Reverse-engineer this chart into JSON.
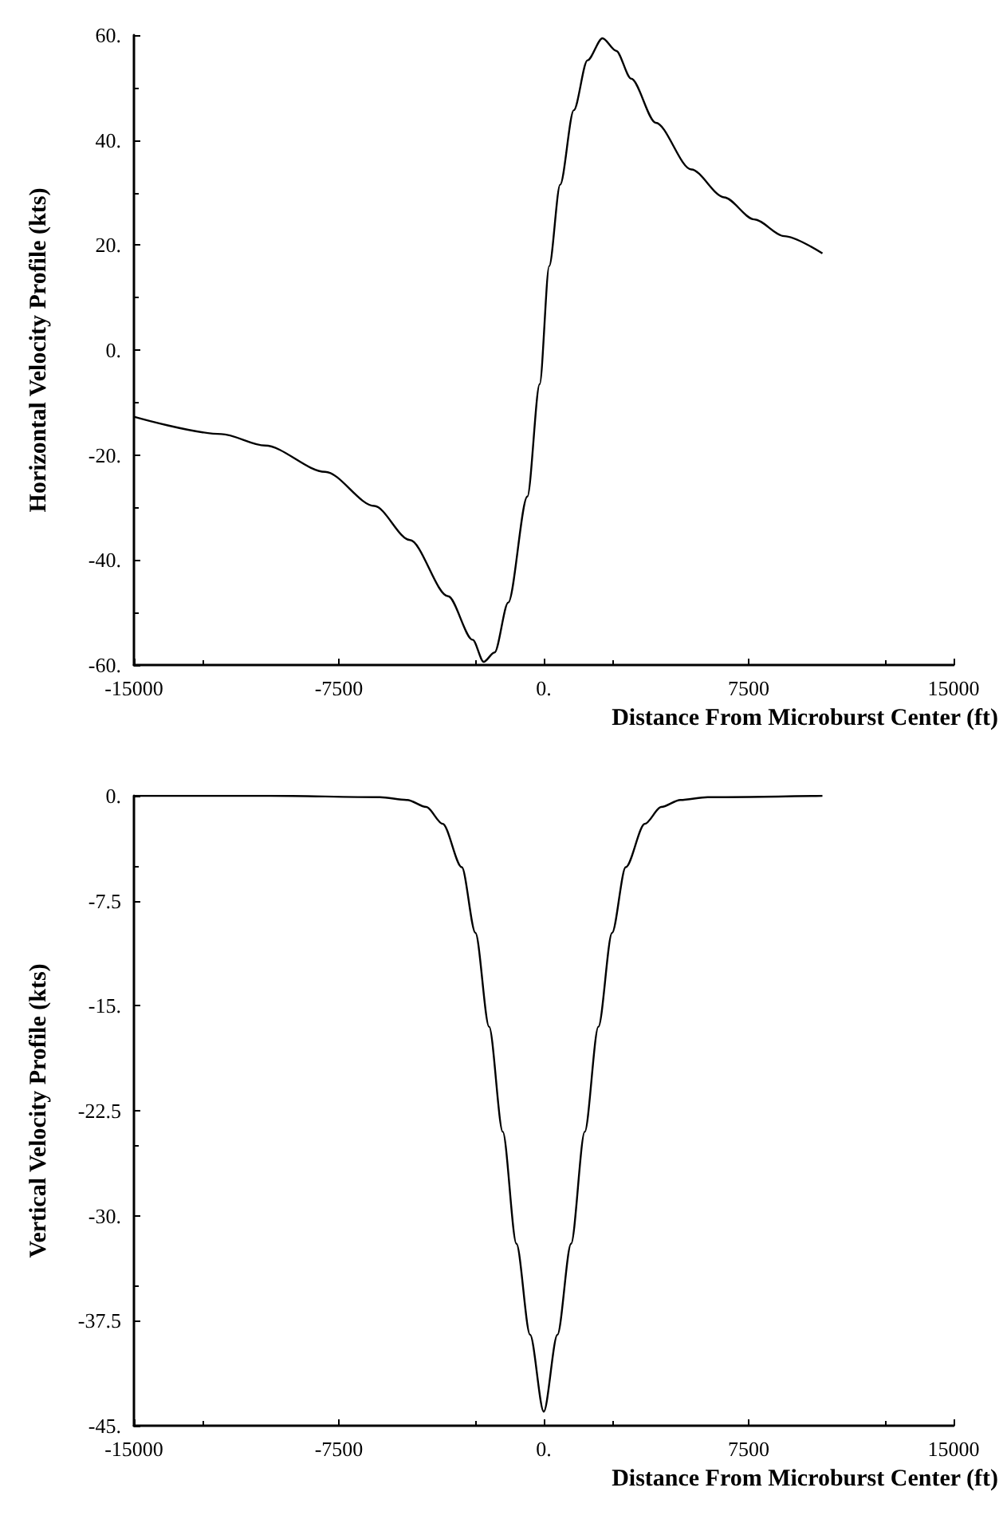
{
  "chart_data": [
    {
      "type": "line",
      "xlabel": "Distance From Microburst Center (ft)",
      "ylabel": "Horizontal Velocity Profile (kts)",
      "grid": false,
      "marker": "none",
      "line_style": "solid",
      "xlim": [
        -15000,
        15000
      ],
      "ylim": [
        -60,
        60
      ],
      "xticks": [
        -15000,
        -7500,
        {
          "value": 0,
          "label": "0."
        },
        7500,
        15000
      ],
      "yticks": [
        {
          "value": -60,
          "label": "-60."
        },
        {
          "value": -40,
          "label": "-40."
        },
        {
          "value": -20,
          "label": "-20."
        },
        {
          "value": 0,
          "label": "0."
        },
        {
          "value": 20,
          "label": "20."
        },
        {
          "value": 40,
          "label": "40."
        },
        {
          "value": 60,
          "label": "60."
        }
      ],
      "series": [
        {
          "color": "#000000",
          "x": [
            -15000,
            -11800,
            -10200,
            -8000,
            -6200,
            -4900,
            -3500,
            -2600,
            -2200,
            -1800,
            -1300,
            -600,
            -150,
            200,
            600,
            1100,
            1600,
            2150,
            2650,
            3200,
            4100,
            5400,
            6600,
            7700,
            8800,
            10200
          ],
          "values": [
            -12.7,
            -16,
            -18.2,
            -23.2,
            -29.7,
            -36.2,
            -46.9,
            -55.2,
            -59.4,
            -57.6,
            -48.1,
            -27.9,
            -6.5,
            16,
            31.5,
            45.7,
            55.2,
            59.4,
            57,
            51.7,
            43.3,
            34.4,
            29.1,
            24.9,
            21.7,
            18.4
          ]
        }
      ]
    },
    {
      "type": "line",
      "xlabel": "Distance From Microburst Center (ft)",
      "ylabel": "Vertical Velocity Profile (kts)",
      "grid": false,
      "marker": "none",
      "line_style": "solid",
      "xlim": [
        -15000,
        15000
      ],
      "ylim": [
        -45,
        0
      ],
      "xticks": [
        -15000,
        -7500,
        {
          "value": 0,
          "label": "0."
        },
        7500,
        15000
      ],
      "yticks": [
        {
          "value": -45,
          "label": "-45."
        },
        -37.5,
        {
          "value": -30,
          "label": "-30."
        },
        -22.5,
        {
          "value": -15,
          "label": "-15."
        },
        -7.5,
        {
          "value": 0,
          "label": "0."
        }
      ],
      "series": [
        {
          "color": "#000000",
          "x": [
            -15000,
            -10000,
            -6000,
            -5000,
            -4300,
            -3700,
            -3000,
            -2500,
            -2000,
            -1500,
            -1000,
            -500,
            0,
            500,
            1000,
            1500,
            2000,
            2500,
            3000,
            3700,
            4300,
            5000,
            6000,
            10200
          ],
          "values": [
            0,
            0,
            -0.1,
            -0.3,
            -0.8,
            -2,
            -5.1,
            -9.8,
            -16.5,
            -24,
            -32,
            -38.5,
            -44,
            -38.5,
            -32,
            -24,
            -16.5,
            -9.8,
            -5.1,
            -2,
            -0.8,
            -0.3,
            -0.1,
            0
          ]
        }
      ]
    }
  ]
}
